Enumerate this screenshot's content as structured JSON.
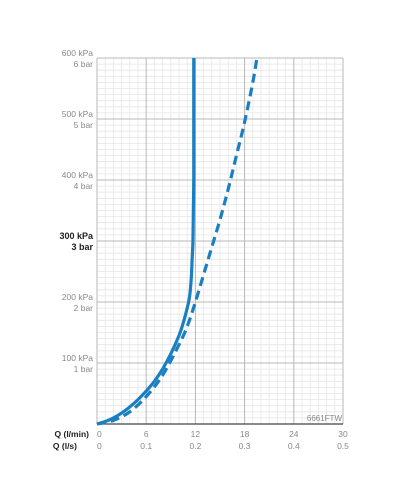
{
  "chart_data": {
    "type": "line",
    "code_label": "6661FTW",
    "x_axes": [
      {
        "label": "Q (l/min)",
        "ticks": [
          "0",
          "6",
          "12",
          "18",
          "24",
          "30"
        ],
        "range": [
          0,
          30
        ]
      },
      {
        "label": "Q (l/s)",
        "ticks": [
          "0",
          "0.1",
          "0.2",
          "0.3",
          "0.4",
          "0.5"
        ],
        "range": [
          0,
          0.5
        ]
      }
    ],
    "y_axis": {
      "range": [
        0,
        600
      ],
      "unit": "kPa",
      "ticks": [
        {
          "value": 100,
          "kpa": "100 kPa",
          "bar": "1 bar",
          "bold": false
        },
        {
          "value": 200,
          "kpa": "200 kPa",
          "bar": "2 bar",
          "bold": false
        },
        {
          "value": 300,
          "kpa": "300 kPa",
          "bar": "3 bar",
          "bold": true
        },
        {
          "value": 400,
          "kpa": "400 kPa",
          "bar": "4 bar",
          "bold": false
        },
        {
          "value": 500,
          "kpa": "500 kPa",
          "bar": "5 bar",
          "bold": false
        },
        {
          "value": 600,
          "kpa": "600 kPa",
          "bar": "6 bar",
          "bold": false
        }
      ]
    },
    "grid": true,
    "series": [
      {
        "style": "solid",
        "color": "#1a7fc1",
        "points": [
          [
            0,
            0
          ],
          [
            1,
            4
          ],
          [
            2,
            10
          ],
          [
            3,
            18
          ],
          [
            4,
            28
          ],
          [
            5,
            40
          ],
          [
            6,
            54
          ],
          [
            7,
            70
          ],
          [
            8,
            90
          ],
          [
            9,
            115
          ],
          [
            10,
            145
          ],
          [
            10.5,
            165
          ],
          [
            11,
            190
          ],
          [
            11.3,
            210
          ],
          [
            11.5,
            240
          ],
          [
            11.6,
            270
          ],
          [
            11.7,
            300
          ],
          [
            11.75,
            350
          ],
          [
            11.8,
            400
          ],
          [
            11.8,
            450
          ],
          [
            11.8,
            500
          ],
          [
            11.8,
            550
          ],
          [
            11.8,
            600
          ]
        ]
      },
      {
        "style": "dashed",
        "color": "#1a7fc1",
        "points": [
          [
            0,
            0
          ],
          [
            2,
            6
          ],
          [
            4,
            20
          ],
          [
            6,
            45
          ],
          [
            8,
            80
          ],
          [
            10,
            130
          ],
          [
            11,
            160
          ],
          [
            12,
            200
          ],
          [
            13,
            245
          ],
          [
            14,
            290
          ],
          [
            15,
            335
          ],
          [
            16,
            385
          ],
          [
            17,
            440
          ],
          [
            18,
            495
          ],
          [
            19,
            560
          ],
          [
            19.5,
            600
          ]
        ]
      }
    ]
  }
}
